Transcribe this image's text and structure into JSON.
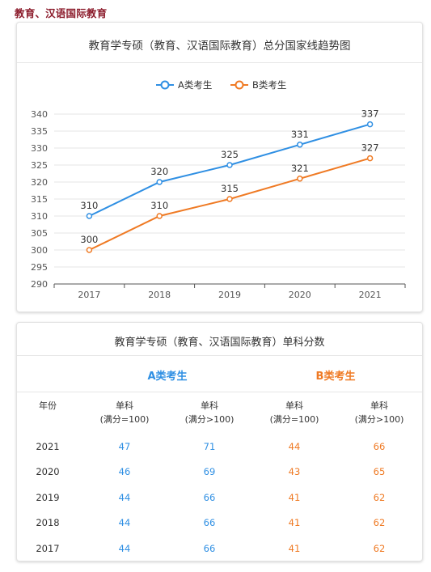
{
  "page_heading": "教育、汉语国际教育",
  "colors": {
    "series_a": "#2f8fe3",
    "series_b": "#ef7a24",
    "heading": "#8c1c2c"
  },
  "chart_data": {
    "type": "line",
    "title": "教育学专硕（教育、汉语国际教育）总分国家线趋势图",
    "categories": [
      "2017",
      "2018",
      "2019",
      "2020",
      "2021"
    ],
    "series": [
      {
        "name": "A类考生",
        "color": "#2f8fe3",
        "values": [
          310,
          320,
          325,
          331,
          337
        ]
      },
      {
        "name": "B类考生",
        "color": "#ef7a24",
        "values": [
          300,
          310,
          315,
          321,
          327
        ]
      }
    ],
    "ylim": [
      290,
      340
    ],
    "yticks": [
      "290",
      "295",
      "300",
      "305",
      "310",
      "315",
      "320",
      "325",
      "330",
      "335",
      "340"
    ],
    "grid": true,
    "legend": "top"
  },
  "table": {
    "title": "教育学专硕（教育、汉语国际教育）单科分数",
    "group_a": "A类考生",
    "group_b": "B类考生",
    "year_header": "年份",
    "col_headers": [
      [
        "单科",
        "(满分=100)"
      ],
      [
        "单科",
        "(满分>100)"
      ],
      [
        "单科",
        "(满分=100)"
      ],
      [
        "单科",
        "(满分>100)"
      ]
    ],
    "rows": [
      {
        "year": "2021",
        "values": [
          "47",
          "71",
          "44",
          "66"
        ]
      },
      {
        "year": "2020",
        "values": [
          "46",
          "69",
          "43",
          "65"
        ]
      },
      {
        "year": "2019",
        "values": [
          "44",
          "66",
          "41",
          "62"
        ]
      },
      {
        "year": "2018",
        "values": [
          "44",
          "66",
          "41",
          "62"
        ]
      },
      {
        "year": "2017",
        "values": [
          "44",
          "66",
          "41",
          "62"
        ]
      }
    ]
  }
}
